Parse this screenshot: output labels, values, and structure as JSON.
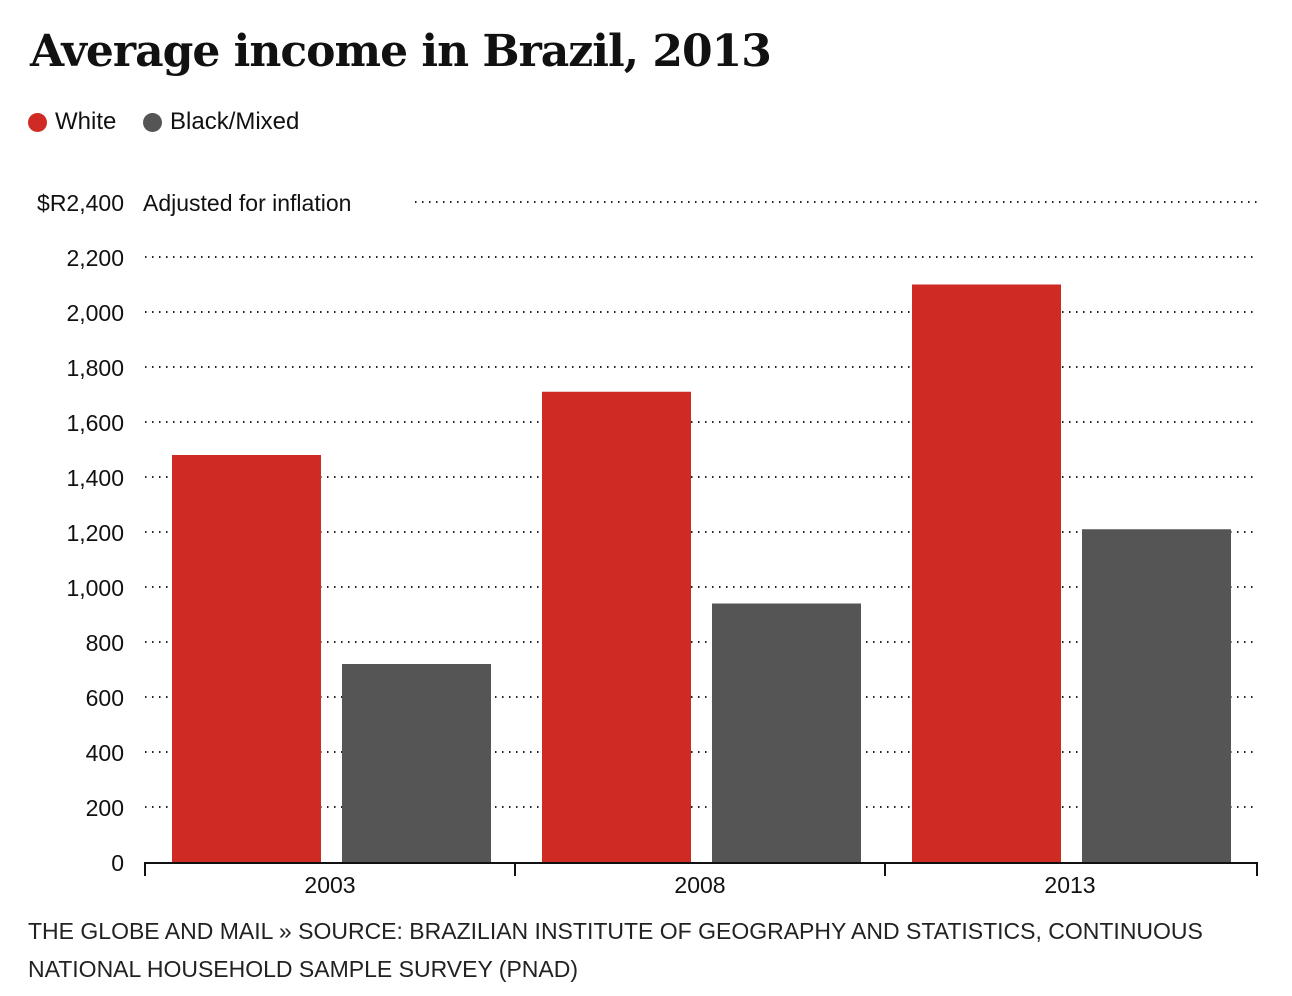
{
  "title": "Average income in Brazil, 2013",
  "colors": {
    "White": "#cf2a23",
    "Black/Mixed": "#555555"
  },
  "source": "THE GLOBE AND MAIL » SOURCE: BRAZILIAN INSTITUTE OF GEOGRAPHY AND STATISTICS, CONTINUOUS NATIONAL HOUSEHOLD SAMPLE SURVEY (PNAD)",
  "chart_data": {
    "type": "bar",
    "title": "Average income in Brazil, 2013",
    "ylabel": "Adjusted for inflation",
    "categories": [
      "2003",
      "2008",
      "2013"
    ],
    "series": [
      {
        "name": "White",
        "values": [
          1480,
          1710,
          2100
        ]
      },
      {
        "name": "Black/Mixed",
        "values": [
          720,
          940,
          1210
        ]
      }
    ],
    "ylim": [
      0,
      2400
    ],
    "yticks": [
      0,
      200,
      400,
      600,
      800,
      1000,
      1200,
      1400,
      1600,
      1800,
      2000,
      2200,
      2400
    ],
    "ytick_labels": [
      "0",
      "200",
      "400",
      "600",
      "800",
      "1,000",
      "1,200",
      "1,400",
      "1,600",
      "1,800",
      "2,000",
      "2,200",
      "$R2,400"
    ],
    "grid": true,
    "legend": "top-left"
  }
}
